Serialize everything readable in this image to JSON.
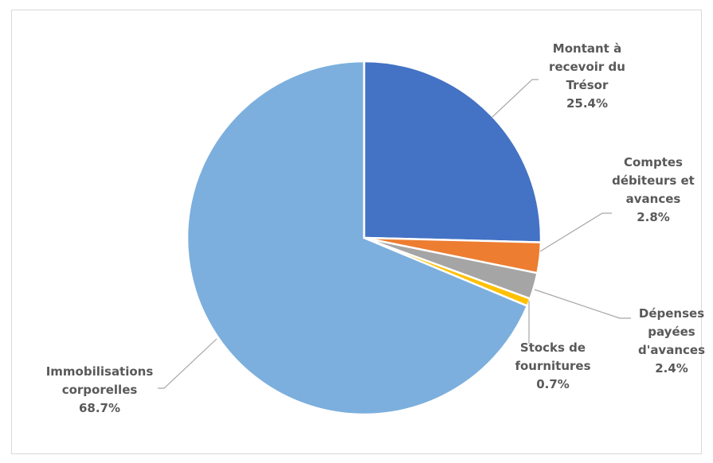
{
  "chart_data": {
    "type": "pie",
    "categories": [
      "Montant à recevoir du Trésor",
      "Comptes débiteurs et avances",
      "Dépenses payées d'avances",
      "Stocks de fournitures",
      "Immobilisations corporelles"
    ],
    "values": [
      25.4,
      2.8,
      2.4,
      0.7,
      68.7
    ],
    "value_labels": [
      "25.4%",
      "2.8%",
      "2.4%",
      "0.7%",
      "68.7%"
    ],
    "colors": [
      "#4472c4",
      "#ed7d31",
      "#a5a5a5",
      "#ffc000",
      "#7cafdd"
    ]
  }
}
